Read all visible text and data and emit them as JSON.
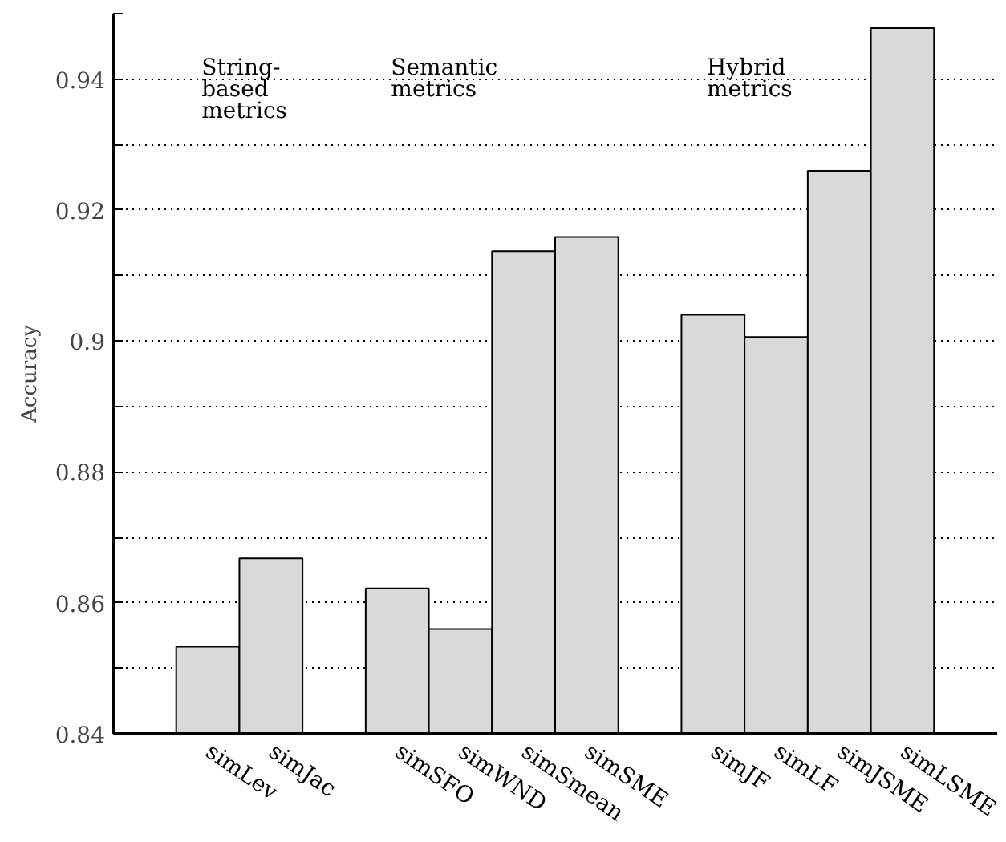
{
  "chart_data": {
    "type": "bar",
    "ylabel": "Accuracy",
    "categories": [
      null,
      "simLev",
      "simJac",
      null,
      "simSFO",
      "simWND",
      "simSmean",
      "simSME",
      null,
      "simJF",
      "simLF",
      "simJSME",
      "simLSME",
      null
    ],
    "values": [
      null,
      0.8533,
      0.8668,
      null,
      0.8622,
      0.856,
      0.9137,
      0.9159,
      null,
      0.904,
      0.9006,
      0.926,
      0.9478,
      null
    ],
    "color": "#d9d9d9",
    "ylim": [
      0.84,
      0.95
    ],
    "yticks": [
      0.84,
      {
        "value": 0.85,
        "label": null
      },
      0.86,
      {
        "value": 0.87,
        "label": null
      },
      0.88,
      {
        "value": 0.89,
        "label": null
      },
      0.9,
      {
        "value": 0.91,
        "label": null
      },
      0.92,
      {
        "value": 0.93,
        "label": null
      },
      0.94,
      {
        "value": 0.95,
        "label": null
      }
    ],
    "grid": "y",
    "annotations": [
      "String-\nbased\nmetrics",
      "Semantic\nmetrics",
      "Hybrid\nmetrics"
    ]
  }
}
